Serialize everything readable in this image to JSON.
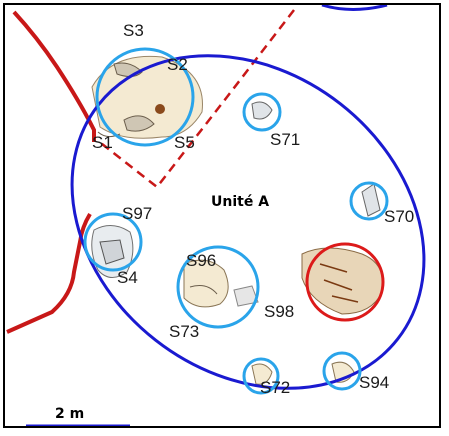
{
  "map": {
    "unit_label": "Unité A",
    "scale_label": "2 m",
    "colors": {
      "boundary_red": "#c81818",
      "unit_ellipse_blue": "#1a1ad0",
      "feature_circle_blue": "#2aa4ea",
      "highlight_red": "#dc1a1a",
      "artifact_fill": "#f4ead2",
      "scale_bar": "#1a1ad0"
    },
    "feature_labels": [
      "S3",
      "S2",
      "S1",
      "S5",
      "S71",
      "S70",
      "S97",
      "S4",
      "S96",
      "S98",
      "S73",
      "S72",
      "S94"
    ]
  }
}
